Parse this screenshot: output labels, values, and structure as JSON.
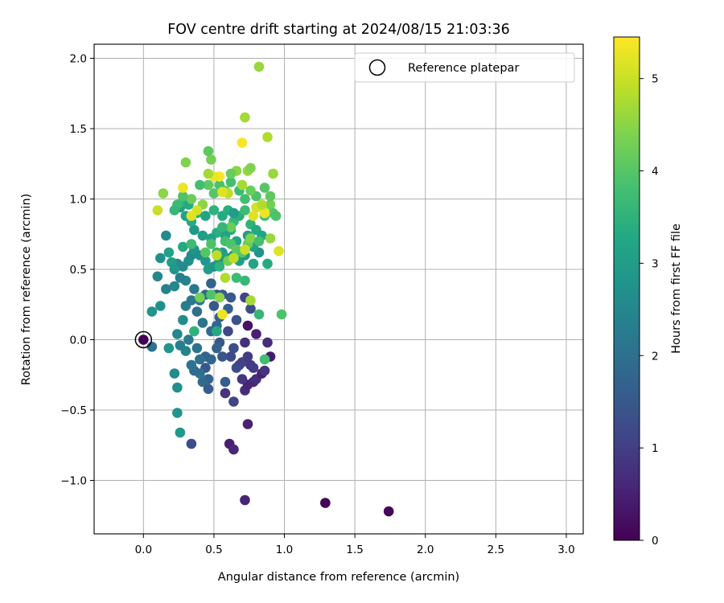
{
  "chart_data": {
    "type": "scatter",
    "title": "FOV centre drift starting at 2024/08/15 21:03:36",
    "xlabel": "Angular distance from reference (arcmin)",
    "ylabel": "Rotation from reference (arcmin)",
    "xlim": [
      -0.35,
      3.12
    ],
    "ylim": [
      -1.38,
      2.1
    ],
    "xticks": [
      0.0,
      0.5,
      1.0,
      1.5,
      2.0,
      2.5,
      3.0
    ],
    "xtick_labels": [
      "0.0",
      "0.5",
      "1.0",
      "1.5",
      "2.0",
      "2.5",
      "3.0"
    ],
    "yticks": [
      -1.0,
      -0.5,
      0.0,
      0.5,
      1.0,
      1.5,
      2.0
    ],
    "ytick_labels": [
      "−1.0",
      "−0.5",
      "0.0",
      "0.5",
      "1.0",
      "1.5",
      "2.0"
    ],
    "grid": true,
    "legend": {
      "placement": "top-right",
      "entries": [
        "Reference platepar"
      ]
    },
    "reference_point": {
      "x": 0.0,
      "y": 0.0
    },
    "colorbar": {
      "label": "Hours from first FF file",
      "range": [
        0,
        5.45
      ],
      "ticks": [
        0,
        1,
        2,
        3,
        4,
        5
      ],
      "tick_labels": [
        "0",
        "1",
        "2",
        "3",
        "4",
        "5"
      ],
      "colormap": "viridis"
    },
    "points": [
      [
        0.0,
        0.0,
        0.0
      ],
      [
        1.29,
        -1.16,
        0.05
      ],
      [
        1.74,
        -1.22,
        0.1
      ],
      [
        0.72,
        -1.14,
        0.55
      ],
      [
        0.61,
        -0.74,
        0.45
      ],
      [
        0.64,
        -0.78,
        0.6
      ],
      [
        0.74,
        -0.6,
        0.5
      ],
      [
        0.34,
        -0.74,
        1.3
      ],
      [
        0.58,
        -0.38,
        0.8
      ],
      [
        0.72,
        -0.36,
        0.7
      ],
      [
        0.74,
        -0.32,
        0.55
      ],
      [
        0.78,
        -0.3,
        0.6
      ],
      [
        0.8,
        -0.28,
        0.75
      ],
      [
        0.84,
        -0.24,
        0.5
      ],
      [
        0.7,
        -0.28,
        0.85
      ],
      [
        0.64,
        -0.44,
        1.1
      ],
      [
        0.76,
        -0.18,
        0.9
      ],
      [
        0.86,
        -0.22,
        0.8
      ],
      [
        0.9,
        -0.12,
        0.4
      ],
      [
        0.88,
        -0.02,
        0.7
      ],
      [
        0.78,
        -0.2,
        0.95
      ],
      [
        0.74,
        0.1,
        0.3
      ],
      [
        0.72,
        -0.02,
        0.75
      ],
      [
        0.8,
        0.04,
        0.5
      ],
      [
        0.68,
        -0.18,
        1.0
      ],
      [
        0.66,
        -0.2,
        1.25
      ],
      [
        0.7,
        -0.16,
        1.1
      ],
      [
        0.74,
        -0.12,
        0.95
      ],
      [
        0.62,
        -0.12,
        1.2
      ],
      [
        0.64,
        -0.06,
        1.3
      ],
      [
        0.56,
        -0.12,
        1.45
      ],
      [
        0.54,
        -0.02,
        1.5
      ],
      [
        0.58,
        -0.3,
        1.6
      ],
      [
        0.52,
        -0.06,
        1.7
      ],
      [
        0.6,
        0.06,
        1.2
      ],
      [
        0.66,
        0.14,
        1.4
      ],
      [
        0.54,
        0.16,
        1.6
      ],
      [
        0.52,
        0.1,
        1.8
      ],
      [
        0.48,
        -0.14,
        1.8
      ],
      [
        0.44,
        -0.12,
        1.75
      ],
      [
        0.46,
        -0.28,
        1.7
      ],
      [
        0.44,
        -0.2,
        1.5
      ],
      [
        0.42,
        -0.3,
        1.9
      ],
      [
        0.46,
        -0.35,
        1.6
      ],
      [
        0.4,
        -0.24,
        2.0
      ],
      [
        0.36,
        -0.22,
        1.9
      ],
      [
        0.34,
        -0.18,
        2.1
      ],
      [
        0.4,
        -0.14,
        2.0
      ],
      [
        0.38,
        -0.06,
        2.1
      ],
      [
        0.32,
        0.0,
        2.2
      ],
      [
        0.3,
        -0.08,
        2.4
      ],
      [
        0.26,
        -0.04,
        2.3
      ],
      [
        0.24,
        0.04,
        2.5
      ],
      [
        0.28,
        0.14,
        2.6
      ],
      [
        0.3,
        0.24,
        2.3
      ],
      [
        0.34,
        0.28,
        2.2
      ],
      [
        0.38,
        0.2,
        2.0
      ],
      [
        0.42,
        0.12,
        2.1
      ],
      [
        0.48,
        0.06,
        1.9
      ],
      [
        0.5,
        0.24,
        1.5
      ],
      [
        0.52,
        0.32,
        1.4
      ],
      [
        0.56,
        0.32,
        1.6
      ],
      [
        0.6,
        0.22,
        1.7
      ],
      [
        0.62,
        0.3,
        1.5
      ],
      [
        0.72,
        0.3,
        1.1
      ],
      [
        0.76,
        0.22,
        1.3
      ],
      [
        0.48,
        0.4,
        1.7
      ],
      [
        0.44,
        0.32,
        1.8
      ],
      [
        0.4,
        0.28,
        2.1
      ],
      [
        0.36,
        0.36,
        2.2
      ],
      [
        0.3,
        0.42,
        2.4
      ],
      [
        0.26,
        0.44,
        2.3
      ],
      [
        0.24,
        0.54,
        2.5
      ],
      [
        0.28,
        0.52,
        2.6
      ],
      [
        0.32,
        0.56,
        2.7
      ],
      [
        0.34,
        0.6,
        2.6
      ],
      [
        0.36,
        0.64,
        2.8
      ],
      [
        0.4,
        0.6,
        2.7
      ],
      [
        0.44,
        0.56,
        2.9
      ],
      [
        0.46,
        0.5,
        3.0
      ],
      [
        0.5,
        0.52,
        2.8
      ],
      [
        0.54,
        0.56,
        2.9
      ],
      [
        0.56,
        0.62,
        3.0
      ],
      [
        0.6,
        0.58,
        3.1
      ],
      [
        0.64,
        0.6,
        2.8
      ],
      [
        0.68,
        0.56,
        3.0
      ],
      [
        0.72,
        0.6,
        2.9
      ],
      [
        0.78,
        0.54,
        3.2
      ],
      [
        0.88,
        0.54,
        3.3
      ],
      [
        0.82,
        0.62,
        2.8
      ],
      [
        0.78,
        0.66,
        3.1
      ],
      [
        0.74,
        0.74,
        3.0
      ],
      [
        0.66,
        0.7,
        3.2
      ],
      [
        0.62,
        0.78,
        3.3
      ],
      [
        0.58,
        0.74,
        3.1
      ],
      [
        0.52,
        0.76,
        3.4
      ],
      [
        0.48,
        0.72,
        3.2
      ],
      [
        0.42,
        0.74,
        3.0
      ],
      [
        0.36,
        0.78,
        2.9
      ],
      [
        0.34,
        0.84,
        3.3
      ],
      [
        0.3,
        0.88,
        3.1
      ],
      [
        0.26,
        0.94,
        3.0
      ],
      [
        0.28,
        0.98,
        3.5
      ],
      [
        0.32,
        0.96,
        3.3
      ],
      [
        0.38,
        0.9,
        3.4
      ],
      [
        0.44,
        0.88,
        3.2
      ],
      [
        0.5,
        0.92,
        3.5
      ],
      [
        0.56,
        0.88,
        3.3
      ],
      [
        0.6,
        0.92,
        3.4
      ],
      [
        0.64,
        0.84,
        3.6
      ],
      [
        0.68,
        0.88,
        3.4
      ],
      [
        0.72,
        0.92,
        3.7
      ],
      [
        0.76,
        0.82,
        3.5
      ],
      [
        0.8,
        0.78,
        3.3
      ],
      [
        0.84,
        0.74,
        3.2
      ],
      [
        0.86,
        0.88,
        3.8
      ],
      [
        0.9,
        0.96,
        4.3
      ],
      [
        0.92,
        0.9,
        4.0
      ],
      [
        0.94,
        0.88,
        3.9
      ],
      [
        0.9,
        1.02,
        4.1
      ],
      [
        0.86,
        1.08,
        4.0
      ],
      [
        0.8,
        1.02,
        3.9
      ],
      [
        0.76,
        1.06,
        4.2
      ],
      [
        0.72,
        1.0,
        3.8
      ],
      [
        0.68,
        1.06,
        3.7
      ],
      [
        0.62,
        1.12,
        3.8
      ],
      [
        0.58,
        1.06,
        4.3
      ],
      [
        0.54,
        1.1,
        3.9
      ],
      [
        0.5,
        1.04,
        4.0
      ],
      [
        0.46,
        1.1,
        4.1
      ],
      [
        0.4,
        1.1,
        3.8
      ],
      [
        0.34,
        1.0,
        4.2
      ],
      [
        0.28,
        1.02,
        3.9
      ],
      [
        0.24,
        0.96,
        3.7
      ],
      [
        0.22,
        0.92,
        3.6
      ],
      [
        0.18,
        0.62,
        3.1
      ],
      [
        0.2,
        0.55,
        3.0
      ],
      [
        0.22,
        0.5,
        2.9
      ],
      [
        0.12,
        0.58,
        2.7
      ],
      [
        0.1,
        0.45,
        2.5
      ],
      [
        0.16,
        0.36,
        2.4
      ],
      [
        0.22,
        0.38,
        2.5
      ],
      [
        0.06,
        0.2,
        2.8
      ],
      [
        0.12,
        0.24,
        2.7
      ],
      [
        0.18,
        -0.06,
        2.8
      ],
      [
        0.06,
        -0.05,
        2.0
      ],
      [
        0.22,
        -0.24,
        2.6
      ],
      [
        0.24,
        -0.34,
        2.7
      ],
      [
        0.24,
        -0.52,
        2.8
      ],
      [
        0.26,
        -0.66,
        2.9
      ],
      [
        0.16,
        0.74,
        2.6
      ],
      [
        0.28,
        0.66,
        3.3
      ],
      [
        0.34,
        0.68,
        3.7
      ],
      [
        0.44,
        0.62,
        4.0
      ],
      [
        0.48,
        0.68,
        3.9
      ],
      [
        0.52,
        0.62,
        3.6
      ],
      [
        0.58,
        0.7,
        3.8
      ],
      [
        0.62,
        0.68,
        3.9
      ],
      [
        0.66,
        0.64,
        4.1
      ],
      [
        0.7,
        0.62,
        4.0
      ],
      [
        0.74,
        0.68,
        4.2
      ],
      [
        0.76,
        0.72,
        4.4
      ],
      [
        0.82,
        0.7,
        3.8
      ],
      [
        0.9,
        0.72,
        4.6
      ],
      [
        0.96,
        0.63,
        5.2
      ],
      [
        0.98,
        0.18,
        3.9
      ],
      [
        0.82,
        0.18,
        3.6
      ],
      [
        0.76,
        0.28,
        4.7
      ],
      [
        0.72,
        0.42,
        3.6
      ],
      [
        0.66,
        0.44,
        3.7
      ],
      [
        0.58,
        0.44,
        4.8
      ],
      [
        0.54,
        0.52,
        3.5
      ],
      [
        0.52,
        0.6,
        4.9
      ],
      [
        0.56,
        0.18,
        5.3
      ],
      [
        0.6,
        0.56,
        4.3
      ],
      [
        0.64,
        0.58,
        4.9
      ],
      [
        0.72,
        0.64,
        5.0
      ],
      [
        0.84,
        0.94,
        4.9
      ],
      [
        0.86,
        0.9,
        5.3
      ],
      [
        0.8,
        0.94,
        5.1
      ],
      [
        0.78,
        0.88,
        5.2
      ],
      [
        0.74,
        1.2,
        4.6
      ],
      [
        0.76,
        1.22,
        4.4
      ],
      [
        0.7,
        1.1,
        4.7
      ],
      [
        0.66,
        1.2,
        4.5
      ],
      [
        0.62,
        1.18,
        4.2
      ],
      [
        0.6,
        1.04,
        4.9
      ],
      [
        0.56,
        1.05,
        5.2
      ],
      [
        0.54,
        1.16,
        5.4
      ],
      [
        0.5,
        1.16,
        5.3
      ],
      [
        0.46,
        1.18,
        4.7
      ],
      [
        0.48,
        1.28,
        4.3
      ],
      [
        0.46,
        1.34,
        4.1
      ],
      [
        0.42,
        0.96,
        4.5
      ],
      [
        0.38,
        0.92,
        5.1
      ],
      [
        0.34,
        0.88,
        5.2
      ],
      [
        0.28,
        1.08,
        5.3
      ],
      [
        0.3,
        1.26,
        4.4
      ],
      [
        0.14,
        1.04,
        4.5
      ],
      [
        0.1,
        0.92,
        5.0
      ],
      [
        0.7,
        1.4,
        5.4
      ],
      [
        0.72,
        1.58,
        4.7
      ],
      [
        0.88,
        1.44,
        4.8
      ],
      [
        0.82,
        1.94,
        4.6
      ],
      [
        0.92,
        1.18,
        4.6
      ],
      [
        0.84,
        0.96,
        4.8
      ],
      [
        0.4,
        0.3,
        4.3
      ],
      [
        0.48,
        0.32,
        3.9
      ],
      [
        0.52,
        0.06,
        3.3
      ],
      [
        0.36,
        0.06,
        3.5
      ],
      [
        0.54,
        0.3,
        4.5
      ],
      [
        0.62,
        0.8,
        4.2
      ],
      [
        0.56,
        0.8,
        3.6
      ],
      [
        0.64,
        0.9,
        3.0
      ],
      [
        0.86,
        -0.14,
        3.8
      ]
    ]
  }
}
